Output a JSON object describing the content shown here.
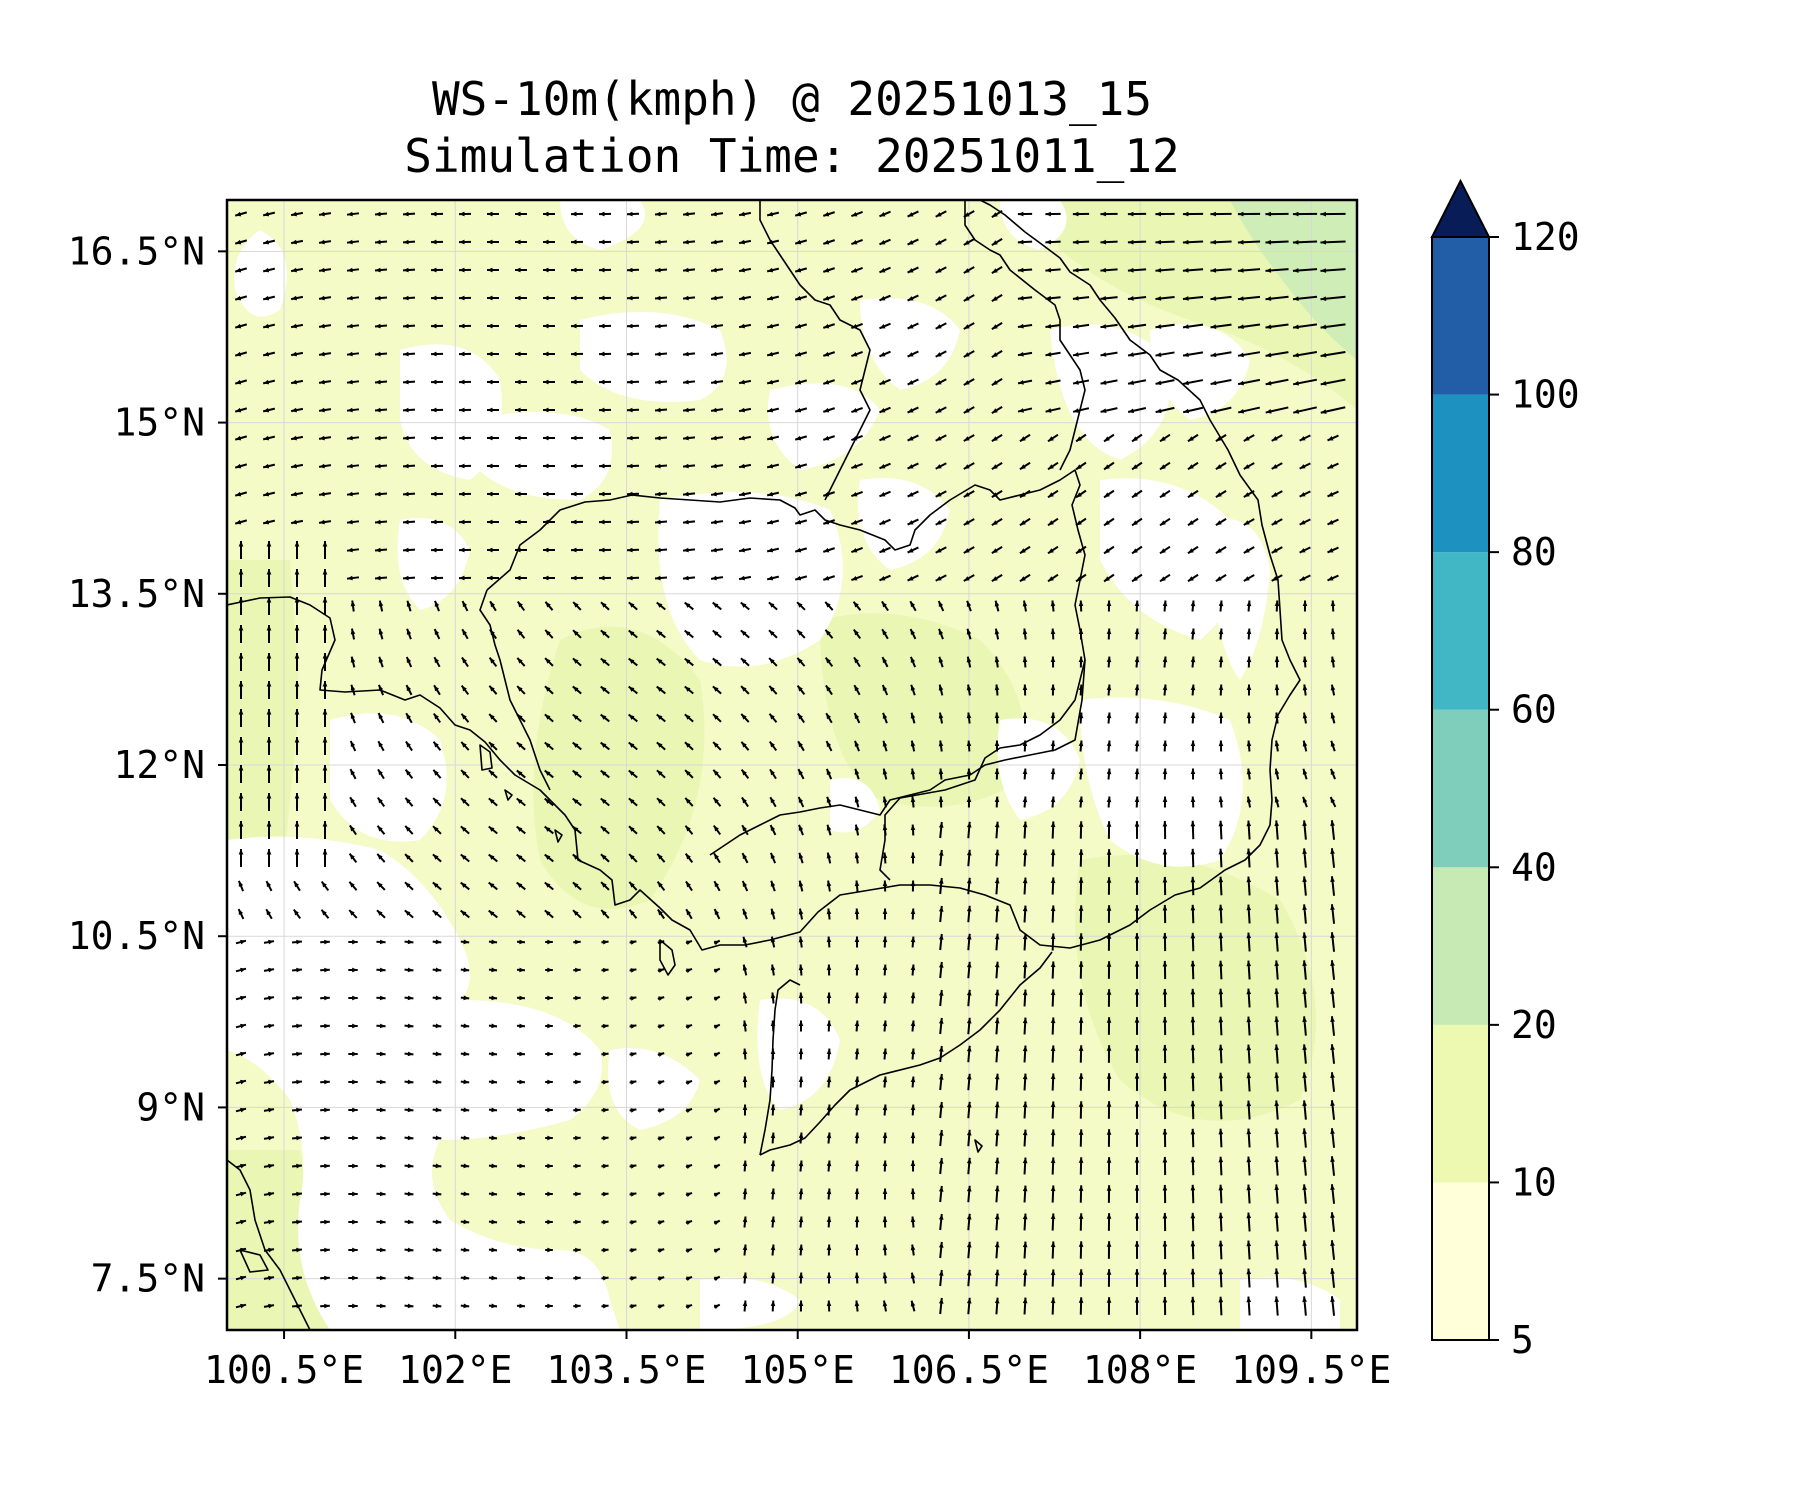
{
  "title": {
    "line1": "WS-10m(kmph) @ 20251013_15",
    "line2": "Simulation Time: 20251011_12"
  },
  "map": {
    "lon_range": [
      100.0,
      109.9
    ],
    "lat_range": [
      7.05,
      16.95
    ],
    "lat_ticks": [
      {
        "value": 16.5,
        "label": "16.5°N"
      },
      {
        "value": 15,
        "label": "15°N"
      },
      {
        "value": 13.5,
        "label": "13.5°N"
      },
      {
        "value": 12,
        "label": "12°N"
      },
      {
        "value": 10.5,
        "label": "10.5°N"
      },
      {
        "value": 9,
        "label": "9°N"
      },
      {
        "value": 7.5,
        "label": "7.5°N"
      }
    ],
    "lon_ticks": [
      {
        "value": 100.5,
        "label": "100.5°E"
      },
      {
        "value": 102,
        "label": "102°E"
      },
      {
        "value": 103.5,
        "label": "103.5°E"
      },
      {
        "value": 105,
        "label": "105°E"
      },
      {
        "value": 106.5,
        "label": "106.5°E"
      },
      {
        "value": 108,
        "label": "108°E"
      },
      {
        "value": 109.5,
        "label": "109.5°E"
      }
    ],
    "grid": true,
    "field": "wind speed 10m, mostly 5-20 kmph, with white patches below 5",
    "arrows": "wind vectors on a regular grid"
  },
  "colorbar": {
    "levels": [
      5,
      10,
      20,
      40,
      60,
      80,
      100,
      120
    ],
    "labels": [
      "5",
      "10",
      "20",
      "40",
      "60",
      "80",
      "100",
      "120"
    ],
    "colors": [
      "#ffffd9",
      "#edf8b1",
      "#c7e9b4",
      "#7fcdbb",
      "#41b6c4",
      "#1d91c0",
      "#225ea8",
      "#0c2c84"
    ],
    "extend_color": "#081d58",
    "extend": "max"
  }
}
